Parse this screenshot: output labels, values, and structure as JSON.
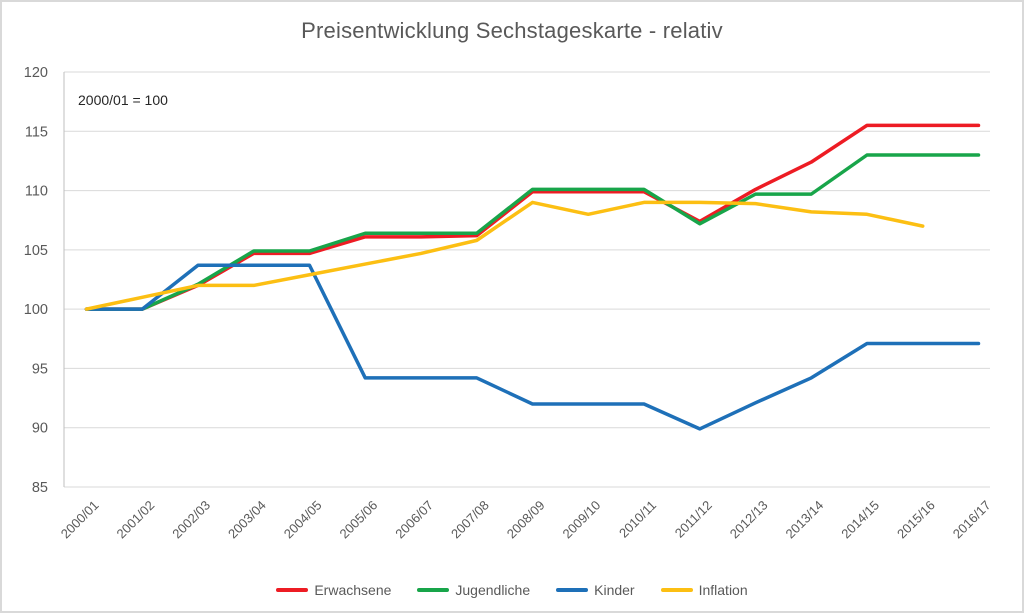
{
  "chart_data": {
    "type": "line",
    "title": "Preisentwicklung Sechstageskarte - relativ",
    "annotation": "2000/01 = 100",
    "xlabel": "",
    "ylabel": "",
    "ylim": [
      85,
      120
    ],
    "y_ticks": [
      85,
      90,
      95,
      100,
      105,
      110,
      115,
      120
    ],
    "grid": true,
    "legend_position": "bottom",
    "categories": [
      "2000/01",
      "2001/02",
      "2002/03",
      "2003/04",
      "2004/05",
      "2005/06",
      "2006/07",
      "2007/08",
      "2008/09",
      "2009/10",
      "2010/11",
      "2011/12",
      "2012/13",
      "2013/14",
      "2014/15",
      "2015/16",
      "2016/17"
    ],
    "series": [
      {
        "name": "Erwachsene",
        "color": "#ed1c24",
        "values": [
          100,
          100,
          102,
          104.7,
          104.7,
          106.1,
          106.1,
          106.2,
          109.9,
          109.9,
          109.9,
          107.4,
          110.1,
          112.4,
          115.5,
          115.5,
          115.5
        ]
      },
      {
        "name": "Jugendliche",
        "color": "#18a54a",
        "values": [
          100,
          100,
          102.1,
          104.9,
          104.9,
          106.4,
          106.4,
          106.4,
          110.1,
          110.1,
          110.1,
          107.2,
          109.7,
          109.7,
          113,
          113,
          113
        ]
      },
      {
        "name": "Kinder",
        "color": "#1e70b8",
        "values": [
          100,
          100,
          103.7,
          103.7,
          103.7,
          94.2,
          94.2,
          94.2,
          92,
          92,
          92,
          89.9,
          92.1,
          94.2,
          97.1,
          97.1,
          97.1
        ]
      },
      {
        "name": "Inflation",
        "color": "#fcbf13",
        "values": [
          100,
          101,
          102,
          102,
          102.9,
          103.8,
          104.7,
          105.8,
          109,
          108,
          109,
          109,
          108.9,
          108.2,
          108,
          107,
          null
        ]
      }
    ],
    "style_colors": {
      "gridline": "#d9d9d9",
      "axis_line": "#bfbfbf",
      "tick_text": "#595959",
      "title_text": "#595959"
    }
  }
}
